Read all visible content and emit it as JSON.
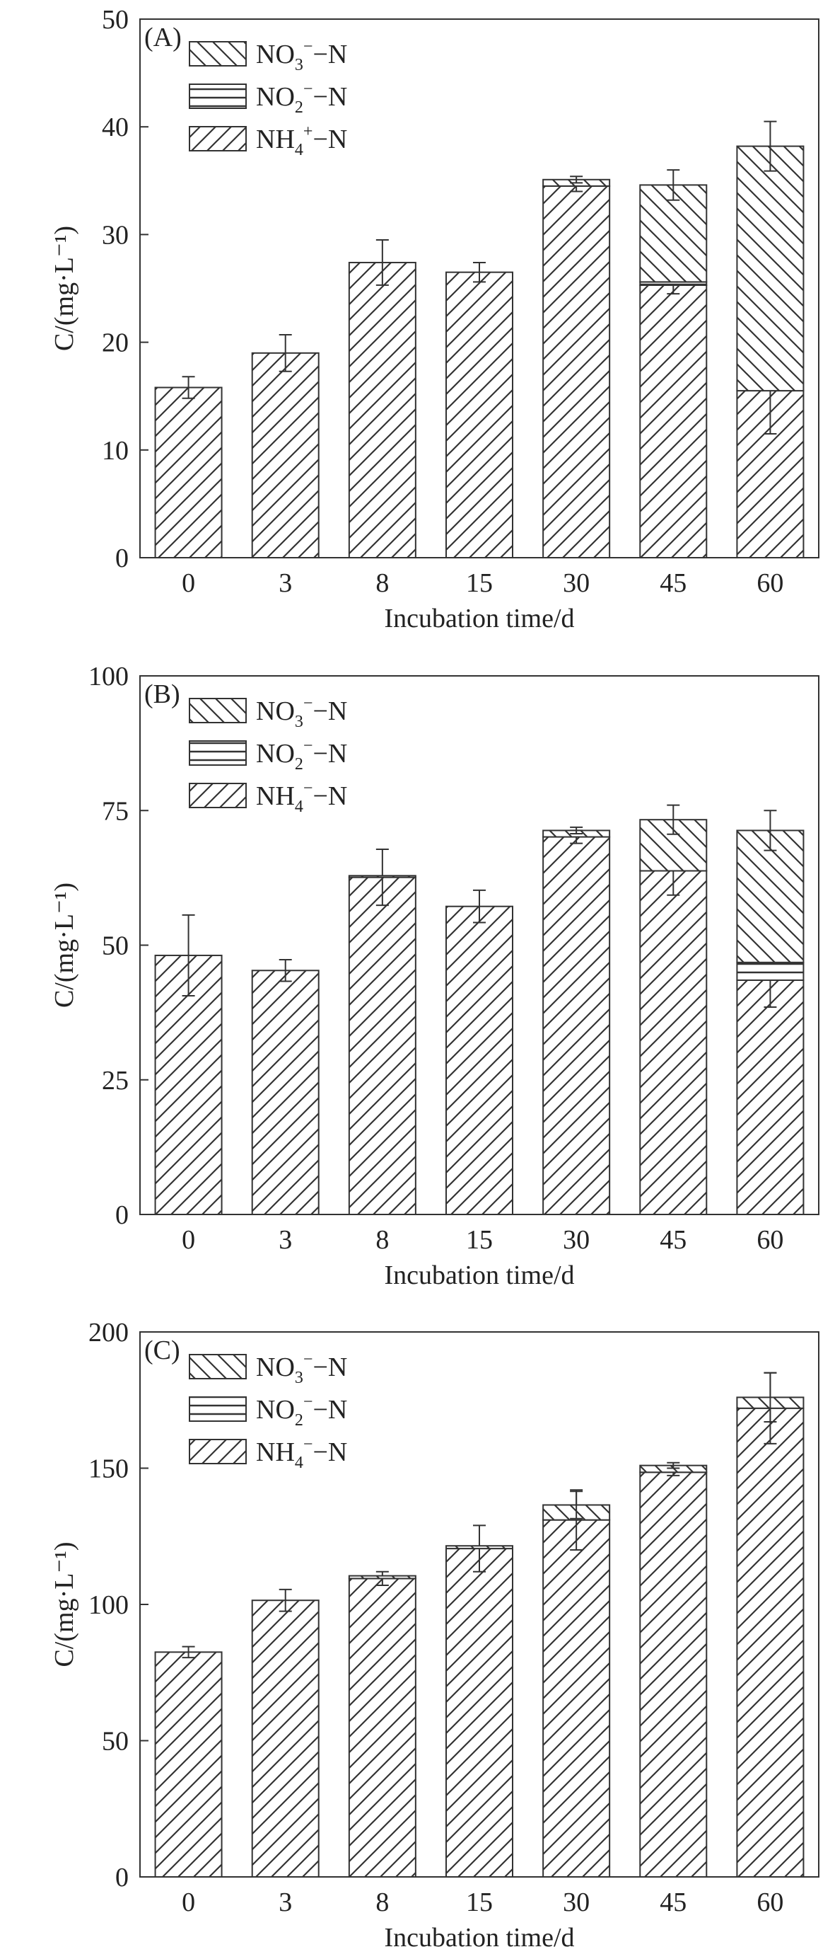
{
  "chart_data": [
    {
      "type": "bar",
      "stacked": true,
      "panel_label": "(A)",
      "categories": [
        "0",
        "3",
        "8",
        "15",
        "30",
        "45",
        "60"
      ],
      "xlabel": "Incubation time/d",
      "ylabel": "C/(mg·L⁻¹)",
      "ylim": [
        0,
        50
      ],
      "yticks": [
        "0",
        "10",
        "20",
        "30",
        "40",
        "50"
      ],
      "grid": false,
      "legend_position": "top-left",
      "legend": [
        {
          "base": "NO",
          "sub": "3",
          "sup": "−",
          "tail": "−N",
          "pattern": "backslash"
        },
        {
          "base": "NO",
          "sub": "2",
          "sup": "−",
          "tail": "−N",
          "pattern": "horizontal"
        },
        {
          "base": "NH",
          "sub": "4",
          "sup": "+",
          "tail": "−N",
          "pattern": "slash"
        }
      ],
      "series": [
        {
          "name": "NH₄⁺−N",
          "pattern": "slash",
          "values": [
            15.8,
            19.0,
            27.4,
            26.5,
            34.5,
            25.3,
            15.5
          ],
          "errors": [
            1.0,
            1.7,
            2.1,
            0.9,
            0.5,
            0.8,
            4.0
          ]
        },
        {
          "name": "NO₂⁻−N",
          "pattern": "horizontal",
          "values": [
            0,
            0,
            0,
            0,
            0,
            0.3,
            0
          ],
          "errors": [
            0,
            0,
            0,
            0,
            0,
            0,
            0
          ]
        },
        {
          "name": "NO₃⁻−N",
          "pattern": "backslash",
          "values": [
            0,
            0,
            0,
            0,
            0.6,
            9.0,
            22.7
          ],
          "errors": [
            0,
            0,
            0,
            0,
            0.3,
            1.4,
            2.3
          ]
        }
      ]
    },
    {
      "type": "bar",
      "stacked": true,
      "panel_label": "(B)",
      "categories": [
        "0",
        "3",
        "8",
        "15",
        "30",
        "45",
        "60"
      ],
      "xlabel": "Incubation time/d",
      "ylabel": "C/(mg·L⁻¹)",
      "ylim": [
        0,
        100
      ],
      "yticks": [
        "0",
        "25",
        "50",
        "75",
        "100"
      ],
      "grid": false,
      "legend_position": "top-left",
      "legend": [
        {
          "base": "NO",
          "sub": "3",
          "sup": "−",
          "tail": "−N",
          "pattern": "backslash"
        },
        {
          "base": "NO",
          "sub": "2",
          "sup": "−",
          "tail": "−N",
          "pattern": "horizontal"
        },
        {
          "base": "NH",
          "sub": "4",
          "sup": "−",
          "tail": "−N",
          "pattern": "slash"
        }
      ],
      "series": [
        {
          "name": "NH₄⁻−N",
          "pattern": "slash",
          "values": [
            48.1,
            45.3,
            62.6,
            57.2,
            70.1,
            63.8,
            43.5
          ],
          "errors": [
            7.5,
            2.0,
            5.2,
            3.0,
            1.2,
            4.5,
            5.0
          ]
        },
        {
          "name": "NO₂⁻−N",
          "pattern": "horizontal",
          "values": [
            0,
            0,
            0,
            0,
            0,
            0,
            3.3
          ],
          "errors": [
            0,
            0,
            0,
            0,
            0,
            0,
            0
          ]
        },
        {
          "name": "NO₃⁻−N",
          "pattern": "backslash",
          "values": [
            0,
            0,
            0.3,
            0,
            1.2,
            9.5,
            24.5
          ],
          "errors": [
            0,
            0,
            0,
            0,
            0.6,
            2.7,
            3.7
          ]
        }
      ]
    },
    {
      "type": "bar",
      "stacked": true,
      "panel_label": "(C)",
      "categories": [
        "0",
        "3",
        "8",
        "15",
        "30",
        "45",
        "60"
      ],
      "xlabel": "Incubation time/d",
      "ylabel": "C/(mg·L⁻¹)",
      "ylim": [
        0,
        200
      ],
      "yticks": [
        "0",
        "50",
        "100",
        "150",
        "200"
      ],
      "grid": false,
      "legend_position": "top-left",
      "legend": [
        {
          "base": "NO",
          "sub": "3",
          "sup": "−",
          "tail": "−N",
          "pattern": "backslash"
        },
        {
          "base": "NO",
          "sub": "2",
          "sup": "−",
          "tail": "−N",
          "pattern": "horizontal"
        },
        {
          "base": "NH",
          "sub": "4",
          "sup": "−",
          "tail": "−N",
          "pattern": "slash"
        }
      ],
      "series": [
        {
          "name": "NH₄⁻−N",
          "pattern": "slash",
          "values": [
            82.5,
            101.5,
            109.5,
            120.5,
            131.0,
            148.5,
            172.0
          ],
          "errors": [
            2.0,
            4.0,
            2.5,
            8.5,
            11.0,
            1.2,
            13.0
          ]
        },
        {
          "name": "NO₂⁻−N",
          "pattern": "horizontal",
          "values": [
            0,
            0,
            0,
            0,
            0,
            0,
            0
          ],
          "errors": [
            0,
            0,
            0,
            0,
            0,
            0,
            0
          ]
        },
        {
          "name": "NO₃⁻−N",
          "pattern": "backslash",
          "values": [
            0,
            0,
            1.0,
            1.0,
            5.5,
            2.5,
            4.0
          ],
          "errors": [
            0,
            0,
            0,
            0,
            5.0,
            1.0,
            9.0
          ]
        }
      ]
    }
  ]
}
